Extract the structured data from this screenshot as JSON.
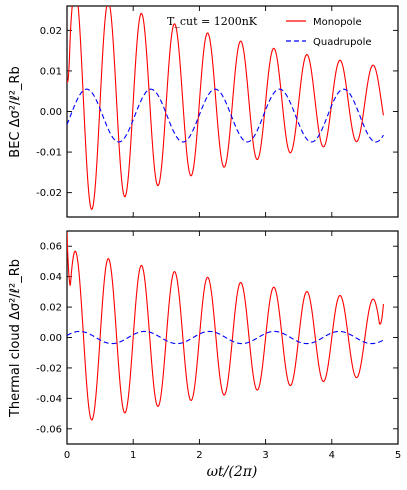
{
  "chart_data": [
    {
      "type": "line",
      "ylabel": "BEC Δσ²/ℓ²_Rb",
      "ylim": [
        -0.026,
        0.026
      ],
      "xlim": [
        0,
        5
      ],
      "xticks": [
        "0",
        "1",
        "2",
        "3",
        "4",
        "5"
      ],
      "yticks": [
        "-0.02",
        "-0.01",
        "0.00",
        "0.01",
        "0.02"
      ],
      "annotation": "T_cut = 1200nK",
      "legend": "top-right",
      "series": [
        {
          "name": "Monopole",
          "color": "#ff0000",
          "style": "solid",
          "start": 0.0076,
          "amplitude": 0.029,
          "offset": 0.0023,
          "frequency": 2.0,
          "decay": 0.25
        },
        {
          "name": "Quadrupole",
          "color": "#0000ff",
          "style": "dashed",
          "amplitude": 0.0065,
          "offset": -0.001,
          "frequency": 1.03,
          "phase_deg": -20
        }
      ]
    },
    {
      "type": "line",
      "ylabel": "Thermal cloud Δσ²/ℓ²_Rb",
      "xlabel": "ωt/(2π)",
      "ylim": [
        -0.07,
        0.07
      ],
      "xlim": [
        0,
        5
      ],
      "xticks": [
        "0",
        "1",
        "2",
        "3",
        "4",
        "5"
      ],
      "yticks": [
        "-0.06",
        "-0.04",
        "-0.02",
        "0.00",
        "0.02",
        "0.04",
        "0.06"
      ],
      "series": [
        {
          "name": "Monopole",
          "color": "#ff0000",
          "style": "solid",
          "start": 0.069,
          "end": 0.022,
          "amplitude": 0.058,
          "frequency": 2.0,
          "decay": 0.18
        },
        {
          "name": "Quadrupole",
          "color": "#0000ff",
          "style": "dashed",
          "amplitude": 0.004,
          "frequency": 1.02,
          "phase_deg": 20
        }
      ]
    }
  ]
}
